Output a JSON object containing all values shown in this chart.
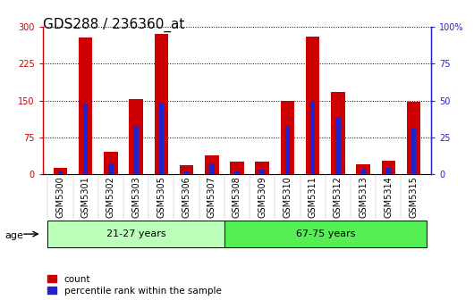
{
  "title": "GDS288 / 236360_at",
  "samples": [
    "GSM5300",
    "GSM5301",
    "GSM5302",
    "GSM5303",
    "GSM5305",
    "GSM5306",
    "GSM5307",
    "GSM5308",
    "GSM5309",
    "GSM5310",
    "GSM5311",
    "GSM5312",
    "GSM5313",
    "GSM5314",
    "GSM5315"
  ],
  "count": [
    12,
    278,
    45,
    153,
    285,
    18,
    38,
    25,
    25,
    150,
    280,
    168,
    20,
    28,
    148
  ],
  "percentile": [
    1.5,
    48,
    7,
    33,
    48,
    1.5,
    7,
    1.5,
    3,
    32,
    50,
    38,
    3,
    4,
    31
  ],
  "red_color": "#cc0000",
  "blue_color": "#2222cc",
  "ylim_left": [
    0,
    300
  ],
  "ylim_right": [
    0,
    100
  ],
  "yticks_left": [
    0,
    75,
    150,
    225,
    300
  ],
  "yticks_right": [
    0,
    25,
    50,
    75,
    100
  ],
  "group1_label": "21-27 years",
  "group2_label": "67-75 years",
  "group1_count": 7,
  "group2_count": 8,
  "age_label": "age",
  "legend1": "count",
  "legend2": "percentile rank within the sample",
  "group1_color": "#bbffbb",
  "group2_color": "#55ee55",
  "bar_width": 0.55,
  "blue_bar_width": 0.2,
  "title_fontsize": 11,
  "tick_fontsize": 7,
  "label_fontsize": 8
}
